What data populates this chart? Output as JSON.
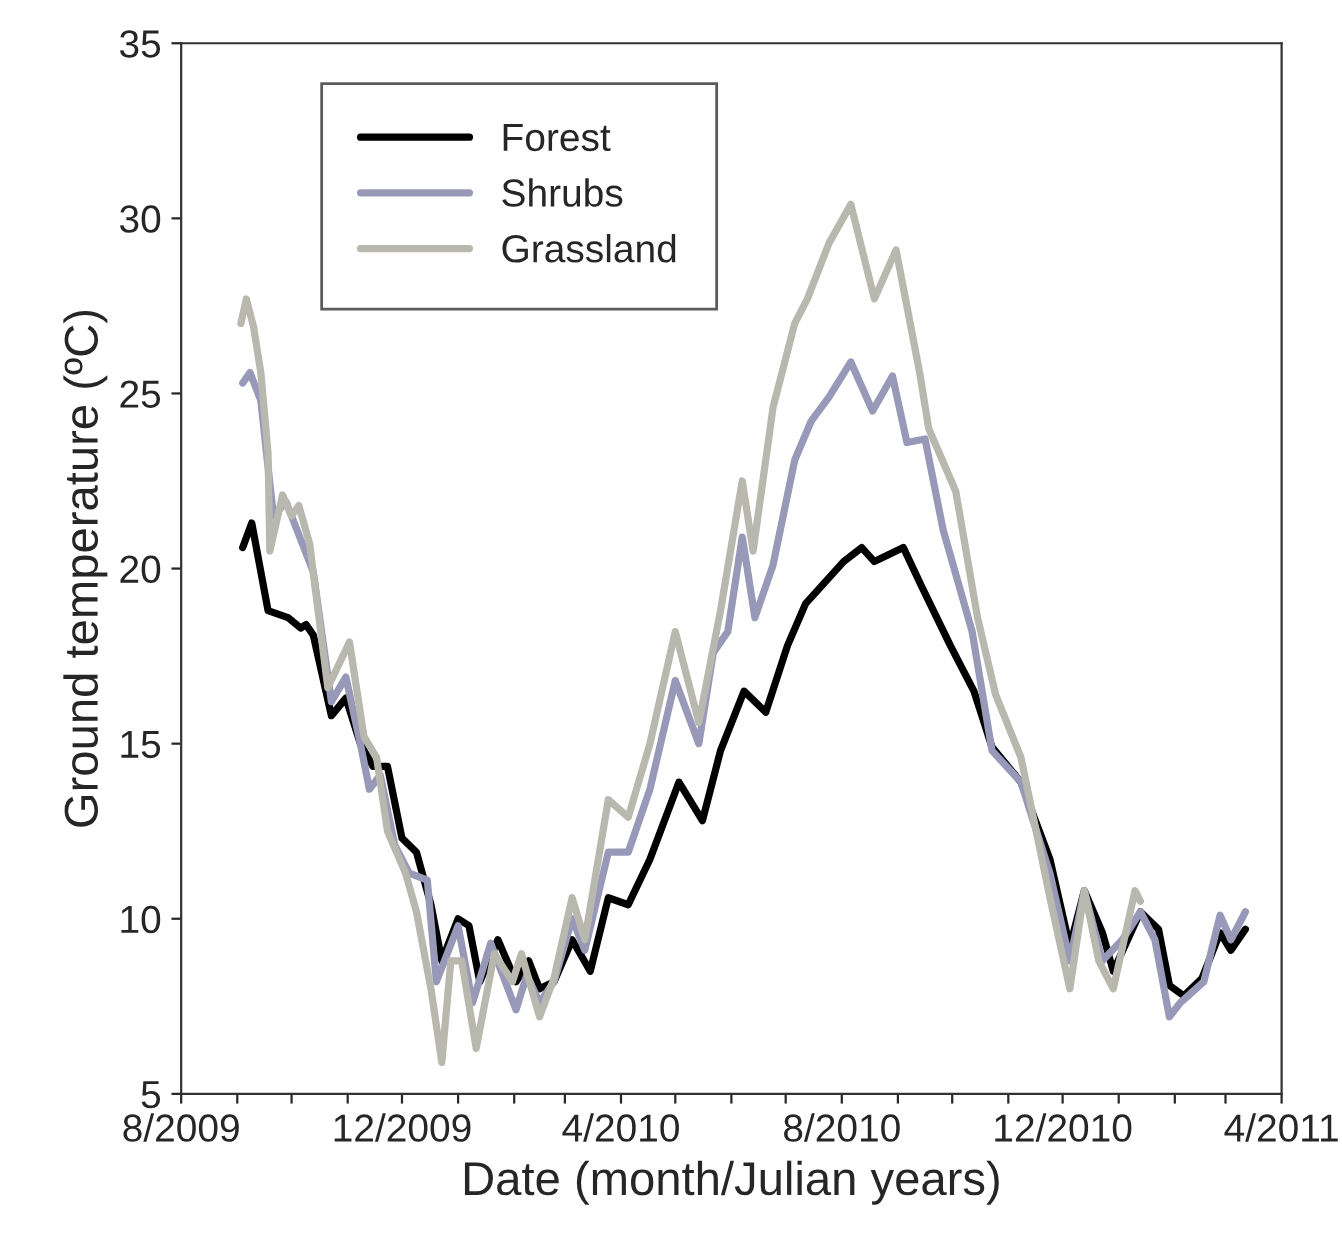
{
  "chart_data": {
    "type": "line",
    "xlabel": "Date (month/Julian years)",
    "ylabel": "Ground temperature (ºC)",
    "xlim": [
      "2009-08-01",
      "2011-04-01"
    ],
    "ylim": [
      5,
      35
    ],
    "yticks": [
      5,
      10,
      15,
      20,
      25,
      30,
      35
    ],
    "xticks": [
      {
        "value": "2009-08-01",
        "label": "8/2009"
      },
      {
        "value": "2009-09-01",
        "label": null
      },
      {
        "value": "2009-10-01",
        "label": null
      },
      {
        "value": "2009-11-01",
        "label": null
      },
      {
        "value": "2009-12-01",
        "label": "12/2009"
      },
      {
        "value": "2010-01-01",
        "label": null
      },
      {
        "value": "2010-02-01",
        "label": null
      },
      {
        "value": "2010-03-01",
        "label": null
      },
      {
        "value": "2010-04-01",
        "label": "4/2010"
      },
      {
        "value": "2010-05-01",
        "label": null
      },
      {
        "value": "2010-06-01",
        "label": null
      },
      {
        "value": "2010-07-01",
        "label": null
      },
      {
        "value": "2010-08-01",
        "label": "8/2010"
      },
      {
        "value": "2010-09-01",
        "label": null
      },
      {
        "value": "2010-10-01",
        "label": null
      },
      {
        "value": "2010-11-01",
        "label": null
      },
      {
        "value": "2010-12-01",
        "label": "12/2010"
      },
      {
        "value": "2011-01-01",
        "label": null
      },
      {
        "value": "2011-02-01",
        "label": null
      },
      {
        "value": "2011-03-01",
        "label": null
      },
      {
        "value": "2011-04-01",
        "label": "4/2011"
      }
    ],
    "grid": false,
    "legend": "top left",
    "marker": "none",
    "line_style": "solid",
    "series": [
      {
        "name": "Forest",
        "color": "#000000",
        "x": [
          "2009-09-04",
          "2009-09-09",
          "2009-09-18",
          "2009-09-29",
          "2009-10-06",
          "2009-10-09",
          "2009-10-13",
          "2009-10-23",
          "2009-10-31",
          "2009-11-08",
          "2009-11-15",
          "2009-11-23",
          "2009-12-01",
          "2009-12-09",
          "2009-12-17",
          "2009-12-23",
          "2010-01-01",
          "2010-01-07",
          "2010-01-13",
          "2010-01-23",
          "2010-02-02",
          "2010-02-09",
          "2010-02-15",
          "2010-02-23",
          "2010-03-05",
          "2010-03-15",
          "2010-03-25",
          "2010-04-05",
          "2010-04-17",
          "2010-05-03",
          "2010-05-16",
          "2010-05-26",
          "2010-06-08",
          "2010-06-20",
          "2010-07-02",
          "2010-07-12",
          "2010-08-02",
          "2010-08-12",
          "2010-08-19",
          "2010-09-04",
          "2010-09-14",
          "2010-09-30",
          "2010-10-13",
          "2010-10-23",
          "2010-11-08",
          "2010-11-24",
          "2010-12-05",
          "2010-12-13",
          "2010-12-23",
          "2010-12-29",
          "2011-01-13",
          "2011-01-23",
          "2011-01-29",
          "2011-02-06",
          "2011-02-16",
          "2011-02-26",
          "2011-03-04",
          "2011-03-12"
        ],
        "values": [
          20.6,
          21.3,
          18.8,
          18.6,
          18.3,
          18.4,
          18.1,
          15.8,
          16.3,
          15.0,
          14.35,
          14.35,
          12.3,
          11.9,
          10.4,
          8.8,
          10.0,
          9.8,
          8.2,
          9.4,
          8.2,
          8.8,
          8.0,
          8.2,
          9.4,
          8.5,
          10.6,
          10.4,
          11.7,
          13.9,
          12.8,
          14.8,
          16.5,
          15.9,
          17.8,
          19.0,
          20.2,
          20.6,
          20.2,
          20.6,
          19.5,
          17.8,
          16.5,
          14.9,
          13.9,
          11.7,
          9.2,
          10.8,
          9.6,
          8.5,
          10.2,
          9.7,
          8.1,
          7.8,
          8.3,
          9.6,
          9.1,
          9.7
        ]
      },
      {
        "name": "Shrubs",
        "color": "#9898b8",
        "x": [
          "2009-09-04",
          "2009-09-08",
          "2009-09-14",
          "2009-09-18",
          "2009-09-21",
          "2009-09-28",
          "2009-10-07",
          "2009-10-13",
          "2009-10-23",
          "2009-10-31",
          "2009-11-08",
          "2009-11-13",
          "2009-11-19",
          "2009-11-27",
          "2009-12-05",
          "2009-12-15",
          "2009-12-20",
          "2010-01-01",
          "2010-01-09",
          "2010-01-19",
          "2010-02-02",
          "2010-02-08",
          "2010-02-15",
          "2010-02-23",
          "2010-03-05",
          "2010-03-12",
          "2010-03-25",
          "2010-04-05",
          "2010-04-17",
          "2010-05-01",
          "2010-05-14",
          "2010-05-22",
          "2010-05-30",
          "2010-06-07",
          "2010-06-14",
          "2010-06-24",
          "2010-07-06",
          "2010-07-15",
          "2010-07-25",
          "2010-08-06",
          "2010-08-18",
          "2010-08-29",
          "2010-09-06",
          "2010-09-16",
          "2010-09-26",
          "2010-10-12",
          "2010-10-23",
          "2010-11-08",
          "2010-11-24",
          "2010-12-05",
          "2010-12-13",
          "2010-12-23",
          "2011-01-03",
          "2011-01-13",
          "2011-01-21",
          "2011-01-29",
          "2011-02-04",
          "2011-02-17",
          "2011-02-26",
          "2011-03-04",
          "2011-03-12"
        ],
        "values": [
          25.3,
          25.6,
          24.8,
          22.9,
          21.5,
          21.9,
          20.7,
          19.9,
          16.2,
          16.9,
          15.0,
          13.7,
          14.1,
          12.1,
          11.3,
          11.1,
          8.2,
          9.8,
          7.6,
          9.3,
          7.4,
          8.4,
          7.6,
          8.2,
          10.0,
          9.1,
          11.9,
          11.9,
          13.7,
          16.8,
          15.0,
          17.6,
          18.2,
          20.9,
          18.6,
          20.1,
          23.1,
          24.2,
          24.9,
          25.9,
          24.5,
          25.5,
          23.6,
          23.7,
          21.1,
          18.2,
          14.8,
          13.9,
          11.3,
          8.8,
          10.8,
          8.8,
          9.4,
          10.2,
          9.4,
          7.2,
          7.6,
          8.2,
          10.1,
          9.4,
          10.2
        ]
      },
      {
        "name": "Grassland",
        "color": "#b8b8ae",
        "x": [
          "2009-09-03",
          "2009-09-06",
          "2009-09-10",
          "2009-09-14",
          "2009-09-18",
          "2009-09-19",
          "2009-09-26",
          "2009-10-01",
          "2009-10-05",
          "2009-10-11",
          "2009-10-21",
          "2009-11-02",
          "2009-11-10",
          "2009-11-17",
          "2009-11-23",
          "2009-12-03",
          "2009-12-09",
          "2009-12-17",
          "2009-12-23",
          "2009-12-28",
          "2010-01-03",
          "2010-01-11",
          "2010-01-21",
          "2010-01-31",
          "2010-02-05",
          "2010-02-15",
          "2010-02-23",
          "2010-03-05",
          "2010-03-12",
          "2010-03-25",
          "2010-04-05",
          "2010-04-17",
          "2010-05-01",
          "2010-05-14",
          "2010-05-26",
          "2010-06-07",
          "2010-06-13",
          "2010-06-24",
          "2010-07-06",
          "2010-07-13",
          "2010-07-25",
          "2010-08-06",
          "2010-08-19",
          "2010-08-31",
          "2010-09-13",
          "2010-09-18",
          "2010-10-03",
          "2010-10-15",
          "2010-10-25",
          "2010-11-08",
          "2010-11-24",
          "2010-12-05",
          "2010-12-13",
          "2010-12-21",
          "2010-12-29",
          "2011-01-10",
          "2011-01-13"
        ],
        "values": [
          27.0,
          27.7,
          26.9,
          25.6,
          23.3,
          20.5,
          22.1,
          21.5,
          21.8,
          20.7,
          16.6,
          17.9,
          15.2,
          14.6,
          12.5,
          11.3,
          10.2,
          8.0,
          5.9,
          8.8,
          8.8,
          6.3,
          9.0,
          8.2,
          9.0,
          7.2,
          8.3,
          10.6,
          9.4,
          13.4,
          12.9,
          15.0,
          18.2,
          15.6,
          18.8,
          22.5,
          20.5,
          24.6,
          27.0,
          27.7,
          29.3,
          30.4,
          27.7,
          29.1,
          25.6,
          24.0,
          22.2,
          18.6,
          16.4,
          14.6,
          10.6,
          8.0,
          10.8,
          8.8,
          8.0,
          10.8,
          10.5
        ]
      }
    ]
  }
}
